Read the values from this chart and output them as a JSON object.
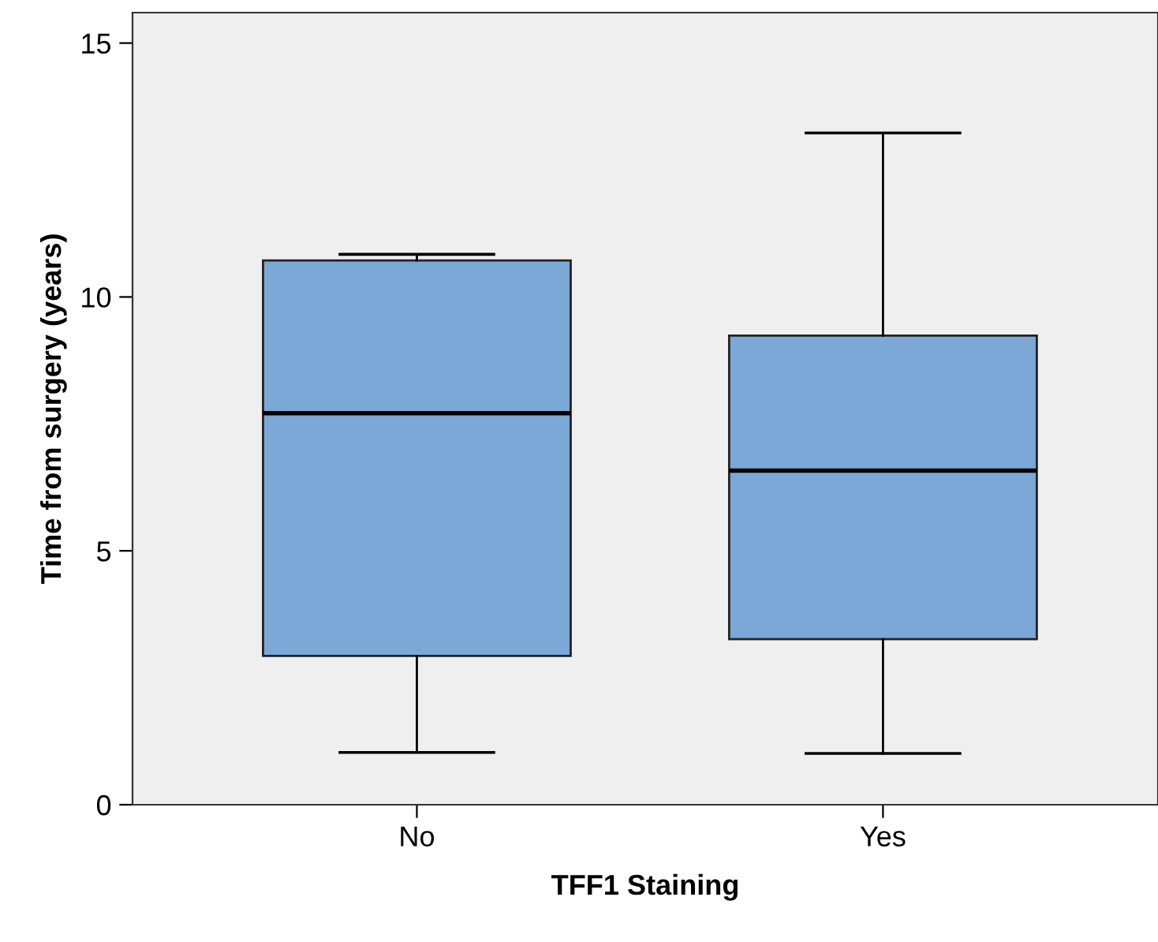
{
  "chart_data": {
    "type": "box",
    "xlabel": "TFF1 Staining",
    "ylabel": "Time from surgery (years)",
    "categories": [
      "No",
      "Yes"
    ],
    "series": [
      {
        "color": "#7ba8d6",
        "boxes": [
          {
            "low": 1.03,
            "q1": 2.93,
            "median": 7.71,
            "q3": 10.72,
            "high": 10.84
          },
          {
            "low": 1.01,
            "q1": 3.26,
            "median": 6.58,
            "q3": 9.24,
            "high": 13.23
          }
        ]
      }
    ],
    "ylim": [
      0,
      15.6
    ],
    "yticks": [
      0,
      5,
      10,
      15
    ],
    "grid": false,
    "legend": false
  }
}
